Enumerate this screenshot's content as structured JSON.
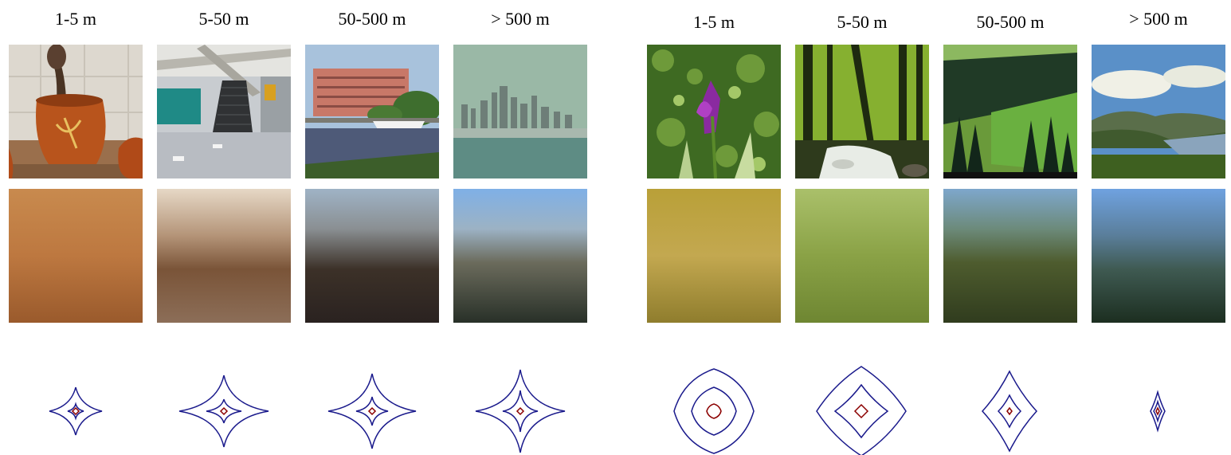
{
  "groups": [
    {
      "id": "man-made",
      "columns": [
        {
          "label": "1-5 m",
          "photo": "kitchen pots",
          "avg_top": "#c88a4e",
          "avg_mid": "#b86e3a",
          "avg_bot": "#9a5a2c"
        },
        {
          "label": "5-50 m",
          "photo": "station stairs",
          "avg_top": "#e6d8c6",
          "avg_mid": "#7a5438",
          "avg_bot": "#8c6e58"
        },
        {
          "label": "50-500 m",
          "photo": "waterfront building",
          "avg_top": "#9fb3c6",
          "avg_mid": "#3c3128",
          "avg_bot": "#2a2220"
        },
        {
          "label": "> 500 m",
          "photo": "city skyline",
          "avg_top": "#7fb0e6",
          "avg_mid": "#6b6b5c",
          "avg_bot": "#283028"
        }
      ]
    },
    {
      "id": "natural",
      "columns": [
        {
          "label": "1-5 m",
          "photo": "iris flower",
          "avg_top": "#b9a038",
          "avg_mid": "#c3a850",
          "avg_bot": "#8f7d2d"
        },
        {
          "label": "5-50 m",
          "photo": "forest stream",
          "avg_top": "#aac06a",
          "avg_mid": "#8aa246",
          "avg_bot": "#6e8632"
        },
        {
          "label": "50-500 m",
          "photo": "hillside pines",
          "avg_top": "#7ea7cc",
          "avg_mid": "#4e5c2e",
          "avg_bot": "#303c1e"
        },
        {
          "label": "> 500 m",
          "photo": "lake valley",
          "avg_top": "#6fa2e0",
          "avg_mid": "#3f5a52",
          "avg_bot": "#1c2e20"
        }
      ]
    }
  ],
  "colors": {
    "contour_outer": "#1a1a8c",
    "contour_inner": "#8b0000"
  }
}
